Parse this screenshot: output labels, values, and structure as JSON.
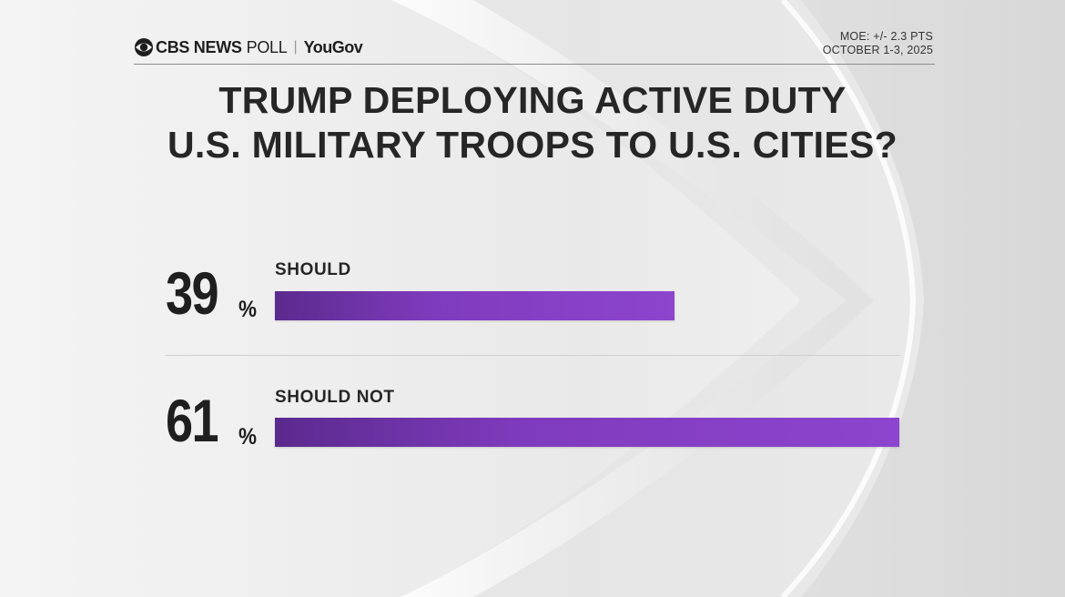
{
  "header": {
    "brand_name": "CBS NEWS",
    "brand_poll": "POLL",
    "brand_separator": "|",
    "partner": "YouGov",
    "moe": "MOE: +/- 2.3 PTS",
    "dates": "OCTOBER 1-3, 2025"
  },
  "chart_data": {
    "type": "bar",
    "orientation": "horizontal",
    "title": "TRUMP DEPLOYING ACTIVE DUTY U.S. MILITARY TROOPS TO U.S. CITIES?",
    "title_lines": [
      "TRUMP DEPLOYING ACTIVE DUTY",
      "U.S. MILITARY TROOPS TO U.S. CITIES?"
    ],
    "categories": [
      "SHOULD",
      "SHOULD NOT"
    ],
    "values": [
      39,
      61
    ],
    "value_labels": [
      "39",
      "61"
    ],
    "unit": "%",
    "xlim": [
      0,
      61
    ],
    "xlabel": "",
    "ylabel": "",
    "bar_color": "#7f3bbd"
  }
}
